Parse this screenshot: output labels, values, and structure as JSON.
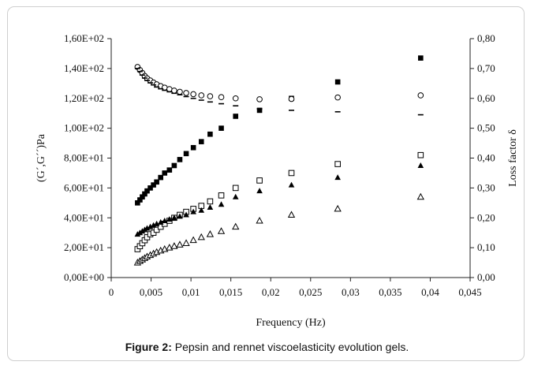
{
  "caption": {
    "label": "Figure 2:",
    "text": "Pepsin and rennet viscoelasticity evolution gels."
  },
  "chart_data": {
    "type": "scatter",
    "xlabel": "Frequency (Hz)",
    "ylabel_left": "(G´,G´´)Pa",
    "ylabel_right": "Loss factor δ",
    "xlim": [
      0,
      0.045
    ],
    "ylim_left": [
      0,
      160
    ],
    "ylim_right": [
      0,
      0.8
    ],
    "x_ticks": [
      "0",
      "0,005",
      "0,01",
      "0,015",
      "0,02",
      "0,025",
      "0,03",
      "0,035",
      "0,04",
      "0,045"
    ],
    "y_left_ticks": [
      "0,00E+00",
      "2,00E+01",
      "4,00E+01",
      "6,00E+01",
      "8,00E+01",
      "1,00E+02",
      "1,20E+02",
      "1,40E+02",
      "1,60E+02"
    ],
    "y_right_ticks": [
      "0,00",
      "0,10",
      "0,20",
      "0,30",
      "0,40",
      "0,50",
      "0,60",
      "0,70",
      "0,80"
    ],
    "y_left_tick_values": [
      0,
      20,
      40,
      60,
      80,
      100,
      120,
      140,
      160
    ],
    "y_right_tick_values": [
      0,
      0.1,
      0.2,
      0.3,
      0.4,
      0.5,
      0.6,
      0.7,
      0.8
    ],
    "x_tick_values": [
      0,
      0.005,
      0.01,
      0.015,
      0.02,
      0.025,
      0.03,
      0.035,
      0.04,
      0.045
    ],
    "series": [
      {
        "marker": "filled-square",
        "axis": "left",
        "x": [
          0.0033,
          0.0036,
          0.0039,
          0.0042,
          0.0045,
          0.0049,
          0.0053,
          0.0057,
          0.0062,
          0.0067,
          0.0073,
          0.0079,
          0.0086,
          0.0094,
          0.0103,
          0.0113,
          0.0124,
          0.0138,
          0.0156,
          0.0186,
          0.0226,
          0.0284,
          0.0388
        ],
        "y": [
          50,
          52,
          54,
          56,
          58,
          60,
          62,
          64,
          67,
          70,
          72,
          75,
          79,
          83,
          87,
          91,
          96,
          100,
          108,
          112,
          120,
          131,
          147
        ]
      },
      {
        "marker": "open-square",
        "axis": "left",
        "x": [
          0.0033,
          0.0036,
          0.0039,
          0.0042,
          0.0045,
          0.0049,
          0.0053,
          0.0057,
          0.0062,
          0.0067,
          0.0073,
          0.0079,
          0.0086,
          0.0094,
          0.0103,
          0.0113,
          0.0124,
          0.0138,
          0.0156,
          0.0186,
          0.0226,
          0.0284,
          0.0388
        ],
        "y": [
          19,
          21,
          23,
          25,
          27,
          29,
          30,
          32,
          34,
          36,
          38,
          40,
          42,
          44,
          46,
          48,
          51,
          55,
          60,
          65,
          70,
          76,
          82
        ]
      },
      {
        "marker": "filled-triangle",
        "axis": "left",
        "x": [
          0.0033,
          0.0036,
          0.0039,
          0.0042,
          0.0045,
          0.0049,
          0.0053,
          0.0057,
          0.0062,
          0.0067,
          0.0073,
          0.0079,
          0.0086,
          0.0094,
          0.0103,
          0.0113,
          0.0124,
          0.0138,
          0.0156,
          0.0186,
          0.0226,
          0.0284,
          0.0388
        ],
        "y": [
          29,
          30,
          31,
          32,
          33,
          34,
          35,
          36,
          37,
          38,
          39,
          40,
          41,
          42,
          44,
          45,
          47,
          49,
          54,
          58,
          62,
          67,
          75
        ]
      },
      {
        "marker": "open-triangle",
        "axis": "left",
        "x": [
          0.0033,
          0.0036,
          0.0039,
          0.0042,
          0.0045,
          0.0049,
          0.0053,
          0.0057,
          0.0062,
          0.0067,
          0.0073,
          0.0079,
          0.0086,
          0.0094,
          0.0103,
          0.0113,
          0.0124,
          0.0138,
          0.0156,
          0.0186,
          0.0226,
          0.0284,
          0.0388
        ],
        "y": [
          10,
          11,
          12,
          13,
          14,
          15,
          16,
          17,
          18,
          19,
          20,
          21,
          22,
          23,
          25,
          27,
          29,
          31,
          34,
          38,
          42,
          46,
          54
        ]
      },
      {
        "marker": "open-circle",
        "axis": "right",
        "x": [
          0.0033,
          0.0036,
          0.0039,
          0.0042,
          0.0045,
          0.0049,
          0.0053,
          0.0057,
          0.0062,
          0.0067,
          0.0073,
          0.0079,
          0.0086,
          0.0094,
          0.0103,
          0.0113,
          0.0124,
          0.0138,
          0.0156,
          0.0186,
          0.0226,
          0.0284,
          0.0388
        ],
        "y": [
          0.705,
          0.695,
          0.685,
          0.675,
          0.667,
          0.66,
          0.653,
          0.647,
          0.641,
          0.636,
          0.631,
          0.626,
          0.622,
          0.618,
          0.614,
          0.61,
          0.607,
          0.604,
          0.6,
          0.597,
          0.598,
          0.603,
          0.61
        ]
      },
      {
        "marker": "dash",
        "axis": "right",
        "x": [
          0.0033,
          0.0036,
          0.0039,
          0.0042,
          0.0045,
          0.0049,
          0.0053,
          0.0057,
          0.0062,
          0.0067,
          0.0073,
          0.0079,
          0.0086,
          0.0094,
          0.0103,
          0.0113,
          0.0124,
          0.0138,
          0.0156,
          0.0186,
          0.0226,
          0.0284,
          0.0388
        ],
        "y": [
          0.7,
          0.69,
          0.678,
          0.668,
          0.66,
          0.652,
          0.645,
          0.638,
          0.632,
          0.627,
          0.622,
          0.617,
          0.612,
          0.606,
          0.6,
          0.594,
          0.588,
          0.582,
          0.575,
          0.565,
          0.56,
          0.555,
          0.545
        ]
      }
    ]
  }
}
